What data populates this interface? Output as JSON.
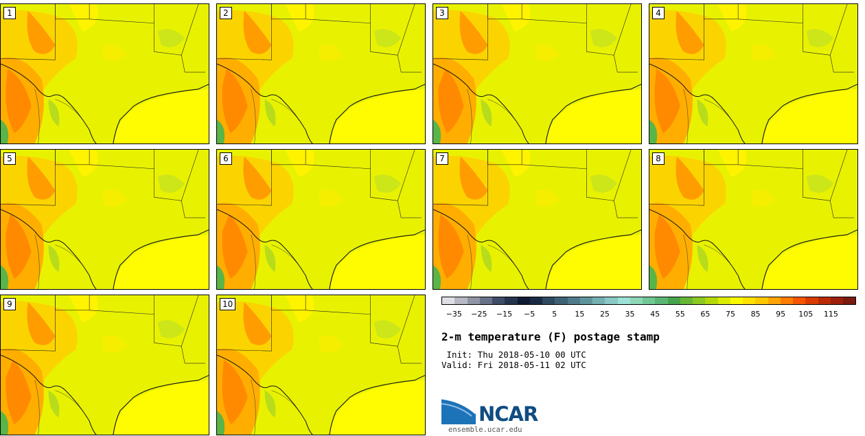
{
  "members": [
    {
      "label": "1"
    },
    {
      "label": "2"
    },
    {
      "label": "3"
    },
    {
      "label": "4"
    },
    {
      "label": "5"
    },
    {
      "label": "6"
    },
    {
      "label": "7"
    },
    {
      "label": "8"
    },
    {
      "label": "9"
    },
    {
      "label": "10"
    }
  ],
  "colorbar": {
    "colors": [
      "#dedee6",
      "#b6b9c3",
      "#8f95a4",
      "#687388",
      "#3f4d67",
      "#25344e",
      "#0e1b33",
      "#192b44",
      "#2e4a60",
      "#3f6175",
      "#4f7a89",
      "#60949c",
      "#74afb1",
      "#89c8c5",
      "#9de2d6",
      "#8dd7b6",
      "#72c795",
      "#5bb574",
      "#47a44c",
      "#67b634",
      "#8bc822",
      "#b4d909",
      "#dbec02",
      "#fbf901",
      "#ffe200",
      "#ffc800",
      "#ffa400",
      "#ff7d00",
      "#f75600",
      "#d93b00",
      "#ba2a07",
      "#9d1f0e",
      "#7a1a10"
    ],
    "tick_labels": [
      "−35",
      "−25",
      "−15",
      "−5",
      "5",
      "15",
      "25",
      "35",
      "45",
      "55",
      "65",
      "75",
      "85",
      "95",
      "105",
      "115"
    ],
    "tick_values": [
      -35,
      -25,
      -15,
      -5,
      5,
      15,
      25,
      35,
      45,
      55,
      65,
      75,
      85,
      95,
      105,
      115
    ],
    "min": -40,
    "max": 125
  },
  "title": "2-m temperature (F) postage stamp",
  "init_text": " Init: Thu 2018-05-10 00 UTC",
  "valid_text": "Valid: Fri 2018-05-11 02 UTC",
  "logo": {
    "name": "NCAR",
    "url": "ensemble.ucar.edu"
  }
}
